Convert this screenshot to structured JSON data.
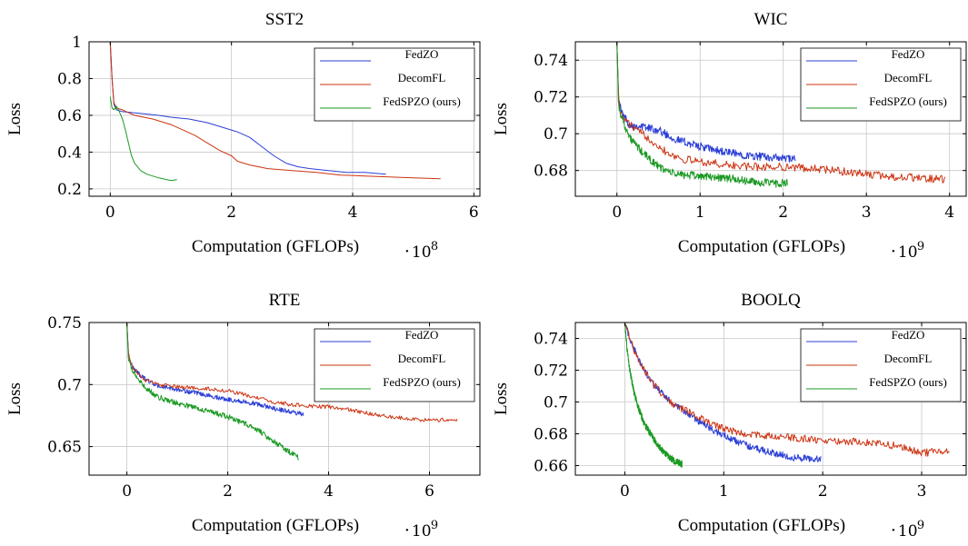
{
  "chart_data": [
    {
      "type": "line",
      "title": "SST2",
      "xlabel": "Computation (GFLOPs)",
      "ylabel": "Loss",
      "x_multiplier_base": "10",
      "x_multiplier_exp": "8",
      "xlim": [
        -0.35,
        6.1
      ],
      "ylim": [
        0.16,
        1.0
      ],
      "xticks": [
        0,
        2,
        4,
        6
      ],
      "xtick_labels": [
        "0",
        "2",
        "4",
        "6"
      ],
      "yticks": [
        0.2,
        0.4,
        0.6,
        0.8,
        1.0
      ],
      "ytick_labels": [
        "0.2",
        "0.4",
        "0.6",
        "0.8",
        "1"
      ],
      "grid": true,
      "legend": "top-right",
      "series": [
        {
          "name": "FedZO",
          "color": "#2b3fd6",
          "points": [
            [
              0,
              1.0
            ],
            [
              0.03,
              0.8
            ],
            [
              0.06,
              0.66
            ],
            [
              0.1,
              0.63
            ],
            [
              0.2,
              0.62
            ],
            [
              0.5,
              0.61
            ],
            [
              0.8,
              0.6
            ],
            [
              1.0,
              0.59
            ],
            [
              1.3,
              0.58
            ],
            [
              1.6,
              0.56
            ],
            [
              1.9,
              0.53
            ],
            [
              2.1,
              0.51
            ],
            [
              2.3,
              0.48
            ],
            [
              2.5,
              0.43
            ],
            [
              2.7,
              0.38
            ],
            [
              2.9,
              0.34
            ],
            [
              3.1,
              0.32
            ],
            [
              3.3,
              0.31
            ],
            [
              3.6,
              0.3
            ],
            [
              3.9,
              0.29
            ],
            [
              4.2,
              0.29
            ],
            [
              4.55,
              0.28
            ]
          ],
          "noise": 0.0
        },
        {
          "name": "DecomFL",
          "color": "#cc3311",
          "points": [
            [
              0,
              1.0
            ],
            [
              0.03,
              0.8
            ],
            [
              0.06,
              0.67
            ],
            [
              0.1,
              0.64
            ],
            [
              0.2,
              0.63
            ],
            [
              0.4,
              0.6
            ],
            [
              0.7,
              0.58
            ],
            [
              1.0,
              0.55
            ],
            [
              1.2,
              0.52
            ],
            [
              1.4,
              0.49
            ],
            [
              1.6,
              0.45
            ],
            [
              1.8,
              0.41
            ],
            [
              2.0,
              0.38
            ],
            [
              2.1,
              0.35
            ],
            [
              2.3,
              0.33
            ],
            [
              2.6,
              0.31
            ],
            [
              3.0,
              0.3
            ],
            [
              3.4,
              0.29
            ],
            [
              3.8,
              0.275
            ],
            [
              4.2,
              0.27
            ],
            [
              4.6,
              0.265
            ],
            [
              5.0,
              0.26
            ],
            [
              5.45,
              0.255
            ]
          ],
          "noise": 0.0
        },
        {
          "name": "FedSPZO (ours)",
          "color": "#1a9922",
          "points": [
            [
              0,
              0.7
            ],
            [
              0.03,
              0.64
            ],
            [
              0.06,
              0.63
            ],
            [
              0.1,
              0.65
            ],
            [
              0.15,
              0.62
            ],
            [
              0.2,
              0.58
            ],
            [
              0.25,
              0.52
            ],
            [
              0.3,
              0.45
            ],
            [
              0.35,
              0.38
            ],
            [
              0.4,
              0.34
            ],
            [
              0.5,
              0.3
            ],
            [
              0.6,
              0.28
            ],
            [
              0.8,
              0.26
            ],
            [
              1.0,
              0.245
            ],
            [
              1.1,
              0.25
            ]
          ],
          "noise": 0.0
        }
      ]
    },
    {
      "type": "line",
      "title": "WIC",
      "xlabel": "Computation (GFLOPs)",
      "ylabel": "Loss",
      "x_multiplier_base": "10",
      "x_multiplier_exp": "9",
      "xlim": [
        -0.5,
        4.2
      ],
      "ylim": [
        0.666,
        0.75
      ],
      "xticks": [
        0,
        1,
        2,
        3,
        4
      ],
      "xtick_labels": [
        "0",
        "1",
        "2",
        "3",
        "4"
      ],
      "yticks": [
        0.68,
        0.7,
        0.72,
        0.74
      ],
      "ytick_labels": [
        "0.68",
        "0.7",
        "0.72",
        "0.74"
      ],
      "grid": true,
      "legend": "top-right",
      "series": [
        {
          "name": "FedZO",
          "color": "#2b3fd6",
          "points": [
            [
              0,
              0.75
            ],
            [
              0.02,
              0.72
            ],
            [
              0.05,
              0.712
            ],
            [
              0.15,
              0.705
            ],
            [
              0.3,
              0.704
            ],
            [
              0.5,
              0.702
            ],
            [
              0.7,
              0.697
            ],
            [
              1.0,
              0.693
            ],
            [
              1.3,
              0.69
            ],
            [
              1.6,
              0.688
            ],
            [
              1.9,
              0.687
            ],
            [
              2.15,
              0.686
            ]
          ],
          "noise": 0.0022
        },
        {
          "name": "DecomFL",
          "color": "#cc3311",
          "points": [
            [
              0,
              0.75
            ],
            [
              0.02,
              0.72
            ],
            [
              0.05,
              0.71
            ],
            [
              0.2,
              0.703
            ],
            [
              0.4,
              0.697
            ],
            [
              0.6,
              0.69
            ],
            [
              0.8,
              0.686
            ],
            [
              1.0,
              0.685
            ],
            [
              1.3,
              0.683
            ],
            [
              1.6,
              0.682
            ],
            [
              2.0,
              0.682
            ],
            [
              2.4,
              0.681
            ],
            [
              2.8,
              0.679
            ],
            [
              3.2,
              0.677
            ],
            [
              3.6,
              0.676
            ],
            [
              3.95,
              0.675
            ]
          ],
          "noise": 0.0022
        },
        {
          "name": "FedSPZO (ours)",
          "color": "#1a9922",
          "points": [
            [
              0,
              0.75
            ],
            [
              0.02,
              0.715
            ],
            [
              0.05,
              0.71
            ],
            [
              0.15,
              0.698
            ],
            [
              0.3,
              0.69
            ],
            [
              0.5,
              0.682
            ],
            [
              0.7,
              0.678
            ],
            [
              1.0,
              0.677
            ],
            [
              1.3,
              0.676
            ],
            [
              1.6,
              0.674
            ],
            [
              1.85,
              0.673
            ],
            [
              2.05,
              0.673
            ]
          ],
          "noise": 0.0022
        }
      ]
    },
    {
      "type": "line",
      "title": "RTE",
      "xlabel": "Computation (GFLOPs)",
      "ylabel": "Loss",
      "x_multiplier_base": "10",
      "x_multiplier_exp": "9",
      "xlim": [
        -0.75,
        7.0
      ],
      "ylim": [
        0.627,
        0.75
      ],
      "xticks": [
        0,
        2,
        4,
        6
      ],
      "xtick_labels": [
        "0",
        "2",
        "4",
        "6"
      ],
      "yticks": [
        0.65,
        0.7,
        0.75
      ],
      "ytick_labels": [
        "0.65",
        "0.7",
        "0.75"
      ],
      "grid": true,
      "legend": "top-right",
      "series": [
        {
          "name": "FedZO",
          "color": "#2b3fd6",
          "points": [
            [
              0,
              0.75
            ],
            [
              0.03,
              0.725
            ],
            [
              0.1,
              0.715
            ],
            [
              0.3,
              0.706
            ],
            [
              0.6,
              0.699
            ],
            [
              1.0,
              0.696
            ],
            [
              1.5,
              0.692
            ],
            [
              2.0,
              0.688
            ],
            [
              2.5,
              0.685
            ],
            [
              3.0,
              0.68
            ],
            [
              3.5,
              0.676
            ]
          ],
          "noise": 0.0018
        },
        {
          "name": "DecomFL",
          "color": "#cc3311",
          "points": [
            [
              0,
              0.75
            ],
            [
              0.03,
              0.725
            ],
            [
              0.1,
              0.715
            ],
            [
              0.3,
              0.705
            ],
            [
              0.6,
              0.7
            ],
            [
              1.0,
              0.698
            ],
            [
              1.5,
              0.697
            ],
            [
              2.0,
              0.695
            ],
            [
              2.5,
              0.69
            ],
            [
              3.0,
              0.685
            ],
            [
              3.5,
              0.683
            ],
            [
              4.0,
              0.682
            ],
            [
              4.5,
              0.679
            ],
            [
              5.0,
              0.675
            ],
            [
              5.5,
              0.673
            ],
            [
              6.0,
              0.671
            ],
            [
              6.55,
              0.672
            ]
          ],
          "noise": 0.0016
        },
        {
          "name": "FedSPZO (ours)",
          "color": "#1a9922",
          "points": [
            [
              0,
              0.75
            ],
            [
              0.03,
              0.72
            ],
            [
              0.1,
              0.712
            ],
            [
              0.3,
              0.7
            ],
            [
              0.6,
              0.69
            ],
            [
              1.0,
              0.685
            ],
            [
              1.5,
              0.68
            ],
            [
              2.0,
              0.674
            ],
            [
              2.5,
              0.666
            ],
            [
              3.0,
              0.652
            ],
            [
              3.4,
              0.641
            ]
          ],
          "noise": 0.0022
        }
      ]
    },
    {
      "type": "line",
      "title": "BOOLQ",
      "xlabel": "Computation (GFLOPs)",
      "ylabel": "Loss",
      "x_multiplier_base": "10",
      "x_multiplier_exp": "9",
      "xlim": [
        -0.5,
        3.45
      ],
      "ylim": [
        0.654,
        0.75
      ],
      "xticks": [
        0,
        1,
        2,
        3
      ],
      "xtick_labels": [
        "0",
        "1",
        "2",
        "3"
      ],
      "yticks": [
        0.66,
        0.68,
        0.7,
        0.72,
        0.74
      ],
      "ytick_labels": [
        "0.66",
        "0.68",
        "0.7",
        "0.72",
        "0.74"
      ],
      "grid": true,
      "legend": "top-right",
      "series": [
        {
          "name": "FedZO",
          "color": "#2b3fd6",
          "points": [
            [
              0,
              0.75
            ],
            [
              0.05,
              0.74
            ],
            [
              0.15,
              0.725
            ],
            [
              0.3,
              0.71
            ],
            [
              0.5,
              0.698
            ],
            [
              0.7,
              0.69
            ],
            [
              0.9,
              0.682
            ],
            [
              1.1,
              0.676
            ],
            [
              1.3,
              0.671
            ],
            [
              1.5,
              0.668
            ],
            [
              1.7,
              0.665
            ],
            [
              1.98,
              0.664
            ]
          ],
          "noise": 0.0022
        },
        {
          "name": "DecomFL",
          "color": "#cc3311",
          "points": [
            [
              0,
              0.75
            ],
            [
              0.05,
              0.74
            ],
            [
              0.15,
              0.725
            ],
            [
              0.3,
              0.71
            ],
            [
              0.5,
              0.698
            ],
            [
              0.7,
              0.692
            ],
            [
              0.9,
              0.685
            ],
            [
              1.2,
              0.68
            ],
            [
              1.6,
              0.678
            ],
            [
              2.0,
              0.676
            ],
            [
              2.4,
              0.675
            ],
            [
              2.8,
              0.672
            ],
            [
              3.0,
              0.668
            ],
            [
              3.28,
              0.669
            ]
          ],
          "noise": 0.0024
        },
        {
          "name": "FedSPZO (ours)",
          "color": "#1a9922",
          "points": [
            [
              0,
              0.75
            ],
            [
              0.02,
              0.735
            ],
            [
              0.05,
              0.72
            ],
            [
              0.1,
              0.704
            ],
            [
              0.15,
              0.694
            ],
            [
              0.2,
              0.686
            ],
            [
              0.3,
              0.676
            ],
            [
              0.4,
              0.668
            ],
            [
              0.5,
              0.663
            ],
            [
              0.58,
              0.661
            ]
          ],
          "noise": 0.0022
        }
      ]
    }
  ]
}
